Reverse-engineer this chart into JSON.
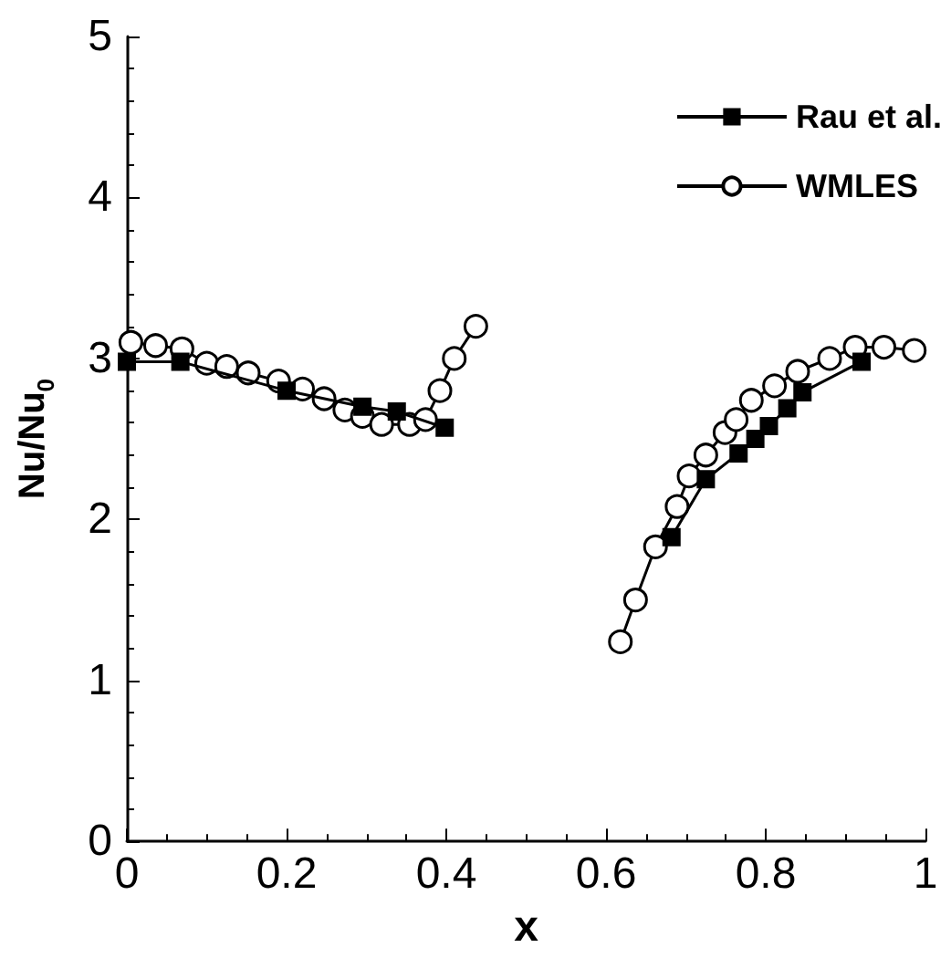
{
  "chart_data": {
    "type": "line",
    "xlabel": "x",
    "ylabel": "Nu/Nu$_{0}$",
    "xlim": [
      0,
      1
    ],
    "xticks": [
      0,
      0.2,
      0.4,
      0.6,
      0.8,
      1
    ],
    "ylim": [
      0,
      5
    ],
    "yticks": [
      0,
      1,
      2,
      3,
      4,
      5
    ],
    "grid": false,
    "legend": "top right",
    "line_style": "solid",
    "series": [
      {
        "name": "Rau et al.",
        "color": "#000000",
        "marker": "square",
        "x": [
          0.0,
          0.067,
          0.2,
          0.295,
          0.338,
          0.398,
          0.5,
          0.682,
          0.725,
          0.766,
          0.787,
          0.804,
          0.827,
          0.846,
          0.92
        ],
        "values": [
          2.98,
          2.98,
          2.8,
          2.7,
          2.67,
          2.57,
          null,
          1.89,
          2.25,
          2.41,
          2.5,
          2.58,
          2.69,
          2.79,
          2.98
        ]
      },
      {
        "name": "WMLES",
        "color": "#000000",
        "marker": "circle",
        "x": [
          0.005,
          0.036,
          0.069,
          0.1,
          0.125,
          0.152,
          0.19,
          0.22,
          0.247,
          0.273,
          0.295,
          0.319,
          0.354,
          0.374,
          0.392,
          0.41,
          0.437,
          0.5,
          0.618,
          0.637,
          0.662,
          0.689,
          0.704,
          0.725,
          0.749,
          0.763,
          0.782,
          0.811,
          0.84,
          0.88,
          0.912,
          0.948,
          0.986
        ],
        "values": [
          3.1,
          3.08,
          3.06,
          2.97,
          2.95,
          2.91,
          2.86,
          2.81,
          2.75,
          2.68,
          2.64,
          2.59,
          2.59,
          2.62,
          2.8,
          3.0,
          3.2,
          null,
          1.24,
          1.5,
          1.83,
          2.08,
          2.27,
          2.4,
          2.54,
          2.62,
          2.74,
          2.83,
          2.92,
          3.0,
          3.07,
          3.07,
          3.05
        ]
      }
    ]
  }
}
